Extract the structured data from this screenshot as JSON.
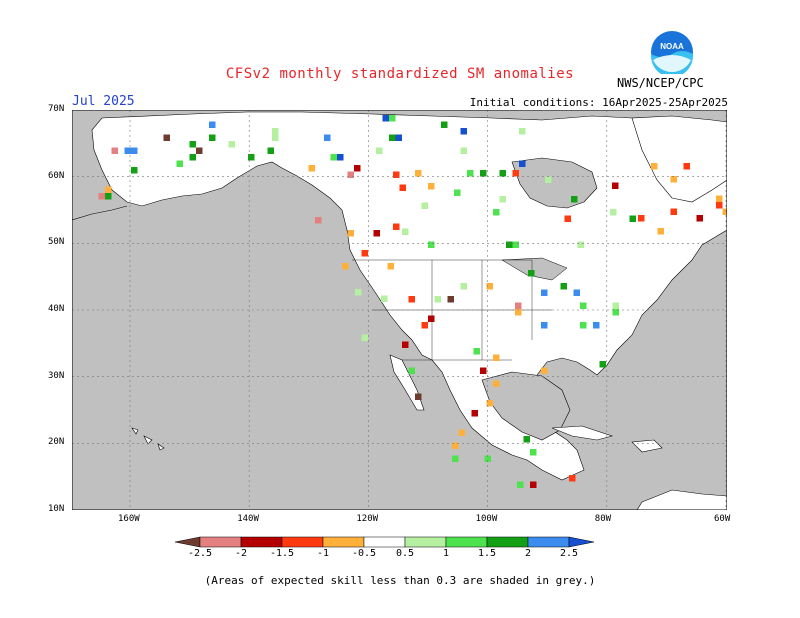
{
  "header": {
    "title": "CFSv2 monthly standardized SM anomalies",
    "month": "Jul 2025",
    "initial_conditions": "Initial conditions: 16Apr2025-25Apr2025",
    "agency": "NWS/NCEP/CPC",
    "logo_text": "NOAA"
  },
  "map": {
    "lat_labels": [
      "70N",
      "60N",
      "50N",
      "40N",
      "30N",
      "20N",
      "10N"
    ],
    "lon_labels": [
      "160W",
      "140W",
      "120W",
      "100W",
      "80W",
      "60W"
    ],
    "lon_range": [
      -170,
      -60
    ],
    "lat_range": [
      10,
      70
    ],
    "colors": {
      "grey": "#c0c0c0",
      "land_white": "#ffffff"
    }
  },
  "colorbar": {
    "labels": [
      "-2.5",
      "-2",
      "-1.5",
      "-1",
      "-0.5",
      "0.5",
      "1",
      "1.5",
      "2",
      "2.5"
    ],
    "colors": [
      "#6e3b2f",
      "#e48080",
      "#b40000",
      "#ff3a10",
      "#ffb03a",
      "#ffffff",
      "#b4f0a0",
      "#4ee24e",
      "#14a014",
      "#3c8cf0",
      "#1450d0"
    ]
  },
  "footnote": "(Areas of expected skill less than 0.3 are shaded in grey.)"
}
